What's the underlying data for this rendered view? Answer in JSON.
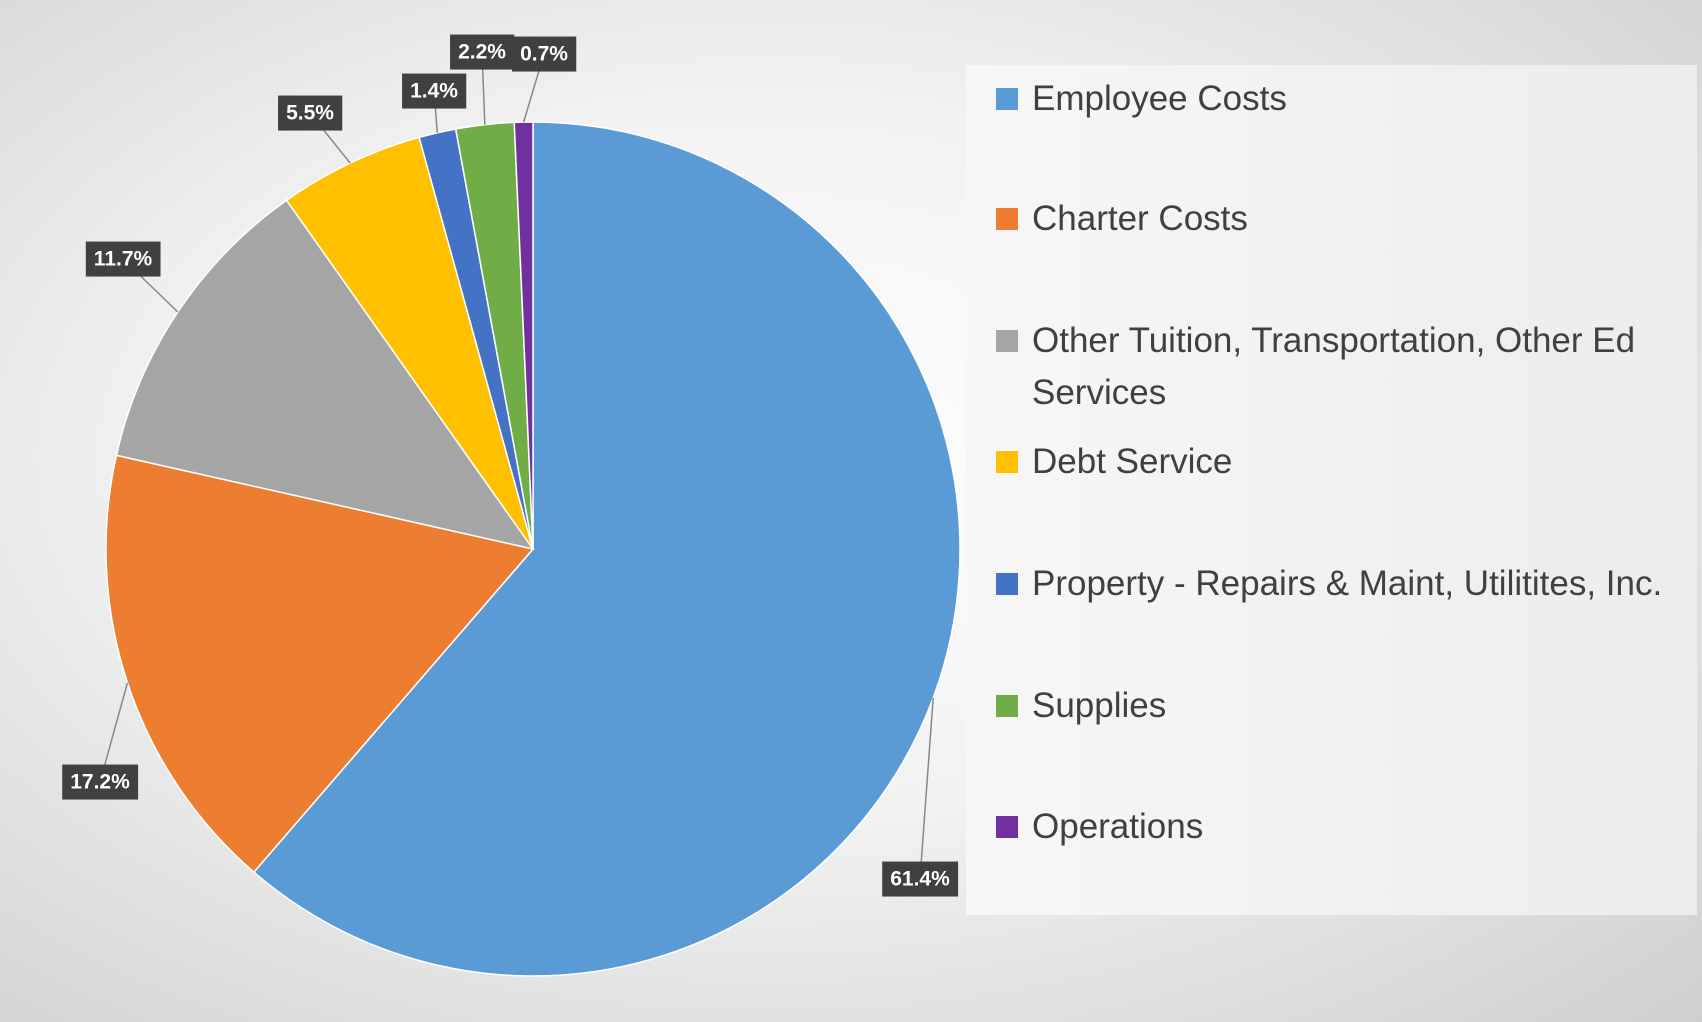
{
  "chart_data": {
    "type": "pie",
    "categories": [
      "Employee Costs",
      "Charter Costs",
      "Other Tuition, Transportation, Other Ed Services",
      "Debt Service",
      "Property - Repairs & Maint, Utilitites, Inc.",
      "Supplies",
      "Operations"
    ],
    "values": [
      61.4,
      17.2,
      11.7,
      5.5,
      1.4,
      2.2,
      0.7
    ],
    "value_labels": [
      "61.4%",
      "17.2%",
      "11.7%",
      "5.5%",
      "1.4%",
      "2.2%",
      "0.7%"
    ],
    "colors": [
      "#5b9bd5",
      "#ed7d31",
      "#a5a5a5",
      "#ffc000",
      "#4472c4",
      "#70ad47",
      "#7030a0"
    ],
    "legend": "right"
  }
}
